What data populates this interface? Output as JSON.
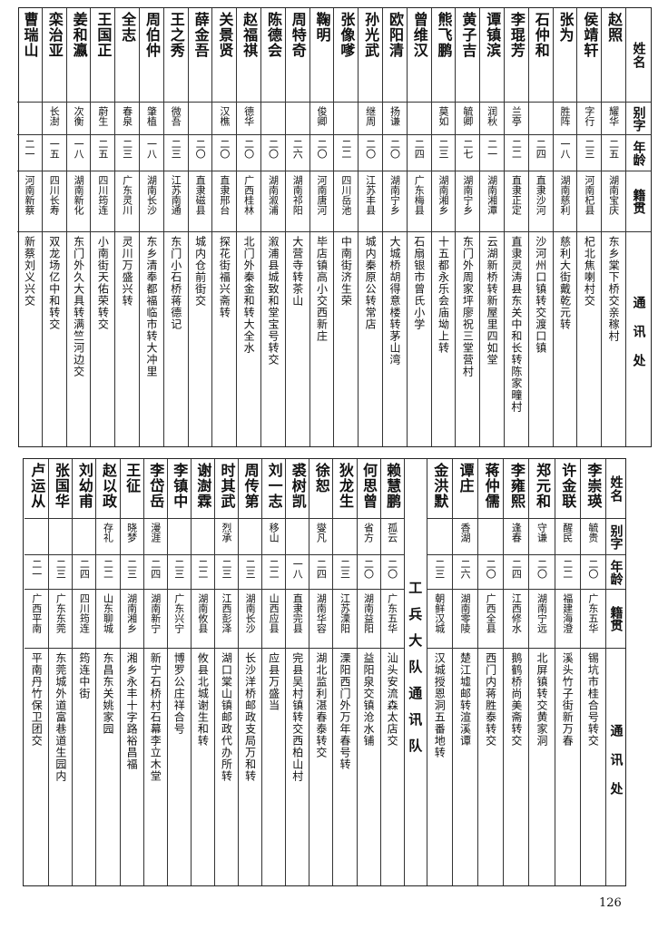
{
  "headers": {
    "name": "姓名",
    "alias": "别字",
    "age": "年龄",
    "native": "籍贯",
    "address": "通讯处"
  },
  "top_rows": [
    {
      "name": "赵照",
      "alias": "耀华",
      "age": "二五",
      "native": "湖南宝庆",
      "address": "东乡棠下桥交亲稼村"
    },
    {
      "name": "侯靖轩",
      "alias": "字行",
      "age": "二三",
      "native": "河南杞县",
      "address": "杞北焦喇村交"
    },
    {
      "name": "张为",
      "alias": "胜阵",
      "age": "一八",
      "native": "湖南慈利",
      "address": "慈利大街戴乾元转"
    },
    {
      "name": "石仲和",
      "alias": "",
      "age": "二四",
      "native": "直隶沙河",
      "address": "沙河州口镇转交渡口镇"
    },
    {
      "name": "李琨芳",
      "alias": "兰亭",
      "age": "二二",
      "native": "直隶正定",
      "address": "直隶灵涛县东关中和长转陈家疃村"
    },
    {
      "name": "谭镇滨",
      "alias": "润秋",
      "age": "二一",
      "native": "湖南湘潭",
      "address": "云湖新桥转新屋里四如堂"
    },
    {
      "name": "黄子吉",
      "alias": "毓卿",
      "age": "二七",
      "native": "湖南宁乡",
      "address": "东门外周家坪廖祝三堂营村"
    },
    {
      "name": "熊飞鹏",
      "alias": "莫如",
      "age": "二三",
      "native": "湖南湘乡",
      "address": "十五都永乐会庙坳上转"
    },
    {
      "name": "曾维汉",
      "alias": "",
      "age": "二四",
      "native": "广东梅县",
      "address": "石扇银市曾氏小学"
    },
    {
      "name": "欧阳清",
      "alias": "扬谦",
      "age": "二〇",
      "native": "湖南宁乡",
      "address": "大城桥胡得意楼转茅山湾"
    },
    {
      "name": "孙光武",
      "alias": "继周",
      "age": "二〇",
      "native": "江苏丰县",
      "address": "城内秦原公转常店"
    },
    {
      "name": "张像嗲",
      "alias": "",
      "age": "二二",
      "native": "四川岳池",
      "address": "中南街济生荣"
    },
    {
      "name": "鞠明",
      "alias": "俊卿",
      "age": "二〇",
      "native": "河南唐河",
      "address": "毕店镇高小交西新庄"
    },
    {
      "name": "周特奇",
      "alias": "",
      "age": "二六",
      "native": "湖南祁阳",
      "address": "大营寺转茶山"
    },
    {
      "name": "陈德会",
      "alias": "",
      "age": "二〇",
      "native": "湖南溆浦",
      "address": "溆浦县城致和堂宝号转交"
    },
    {
      "name": "赵福祺",
      "alias": "德华",
      "age": "二〇",
      "native": "广西桂林",
      "address": "北门外秦金和转大全水"
    },
    {
      "name": "关景贤",
      "alias": "汉樵",
      "age": "二〇",
      "native": "直隶邢台",
      "address": "探花街福兴斋转"
    },
    {
      "name": "薛金吾",
      "alias": "",
      "age": "二〇",
      "native": "直隶磁县",
      "address": "城内仓前街交"
    },
    {
      "name": "王之秀",
      "alias": "微吾",
      "age": "二三",
      "native": "江苏南通",
      "address": "东门小石桥蒋德记"
    },
    {
      "name": "周伯仲",
      "alias": "肇植",
      "age": "一八",
      "native": "湖南长沙",
      "address": "东乡清奉都福临市转大冲里"
    },
    {
      "name": "全志",
      "alias": "春泉",
      "age": "二三",
      "native": "广东灵川",
      "address": "灵川万盛兴转"
    },
    {
      "name": "王国正",
      "alias": "蔚生",
      "age": "二五",
      "native": "四川筠连",
      "address": "小南街天佑荣转交"
    },
    {
      "name": "姜和瀛",
      "alias": "次衡",
      "age": "一八",
      "native": "湖南新化",
      "address": "东门外久大具转满竺河边交"
    },
    {
      "name": "栾治亚",
      "alias": "长澍",
      "age": "一五",
      "native": "四川长寿",
      "address": "双龙场亿中和转交"
    },
    {
      "name": "曹瑞山",
      "alias": "",
      "age": "二一",
      "native": "河南新蔡",
      "address": "新蔡刘义兴交"
    }
  ],
  "bottom_rows_a": [
    {
      "name": "李崇瑛",
      "alias": "毓贵",
      "age": "二〇",
      "native": "广东五华",
      "address": "锡坑市桂合号转交"
    },
    {
      "name": "许金联",
      "alias": "醒民",
      "age": "二二",
      "native": "福建海澄",
      "address": "溪头竹子街新万春"
    },
    {
      "name": "郑元和",
      "alias": "守谦",
      "age": "二〇",
      "native": "湖南宁远",
      "address": "北屏镇转交黄家洞"
    },
    {
      "name": "李雍熙",
      "alias": "逢春",
      "age": "二四",
      "native": "江西修水",
      "address": "鹅鹤桥尚美斋转交"
    },
    {
      "name": "蒋仲儒",
      "alias": "",
      "age": "二〇",
      "native": "广西全县",
      "address": "西门内蒋胜泰转交"
    },
    {
      "name": "谭庄",
      "alias": "香湖",
      "age": "二六",
      "native": "湖南零陵",
      "address": "楚江墟邮转渲溪谭"
    },
    {
      "name": "金洪默",
      "alias": "",
      "age": "二三",
      "native": "朝鲜汉城",
      "address": "汉城授恩洞五番地转"
    }
  ],
  "group_label": "工兵大队通讯队",
  "bottom_rows_b": [
    {
      "name": "赖慧鹏",
      "alias": "孤云",
      "age": "二〇",
      "native": "广东五华",
      "address": "汕头安流森太店交"
    },
    {
      "name": "何思曾",
      "alias": "省方",
      "age": "二〇",
      "native": "湖南益阳",
      "address": "益阳泉交镇沧水铺"
    },
    {
      "name": "狄龙生",
      "alias": "",
      "age": "二三",
      "native": "江苏溧阳",
      "address": "溧阳西门外万年春号转"
    },
    {
      "name": "徐恕",
      "alias": "燮凡",
      "age": "二四",
      "native": "湖南华容",
      "address": "湖北监利湛春泰转交"
    },
    {
      "name": "裘树凯",
      "alias": "",
      "age": "一八",
      "native": "直隶完县",
      "address": "完县吴村镇转交西柏山村"
    },
    {
      "name": "刘一志",
      "alias": "移山",
      "age": "二二",
      "native": "山西应县",
      "address": "应县万盛当"
    },
    {
      "name": "周传第",
      "alias": "",
      "age": "二三",
      "native": "湖南长沙",
      "address": "长沙洋桥邮政支局万和转"
    },
    {
      "name": "时其武",
      "alias": "烈承",
      "age": "二三",
      "native": "江西彭泽",
      "address": "湖口棠山镇邮政代办所转"
    },
    {
      "name": "谢澍霖",
      "alias": "",
      "age": "二二",
      "native": "湖南攸县",
      "address": "攸县北城谢生和转"
    },
    {
      "name": "李镇中",
      "alias": "",
      "age": "二三",
      "native": "广东兴宁",
      "address": "博罗公庄祥合号"
    },
    {
      "name": "李岱岳",
      "alias": "漫涯",
      "age": "二四",
      "native": "湖南新宁",
      "address": "新宁石桥村石幕李立木堂"
    },
    {
      "name": "王征",
      "alias": "晓梦",
      "age": "二三",
      "native": "湖南湘乡",
      "address": "湘乡永丰十字路裕昌福"
    },
    {
      "name": "赵以政",
      "alias": "存礼",
      "age": "二二",
      "native": "山东聊城",
      "address": "东昌东关姚家园"
    },
    {
      "name": "刘幼甫",
      "alias": "",
      "age": "二四",
      "native": "四川筠连",
      "address": "筠连中街"
    },
    {
      "name": "张国华",
      "alias": "",
      "age": "二三",
      "native": "广东东莞",
      "address": "东莞城外道富巷道生园内"
    },
    {
      "name": "卢运从",
      "alias": "",
      "age": "二一",
      "native": "广西平南",
      "address": "平南丹竹保卫团交"
    }
  ],
  "page_number": "126"
}
